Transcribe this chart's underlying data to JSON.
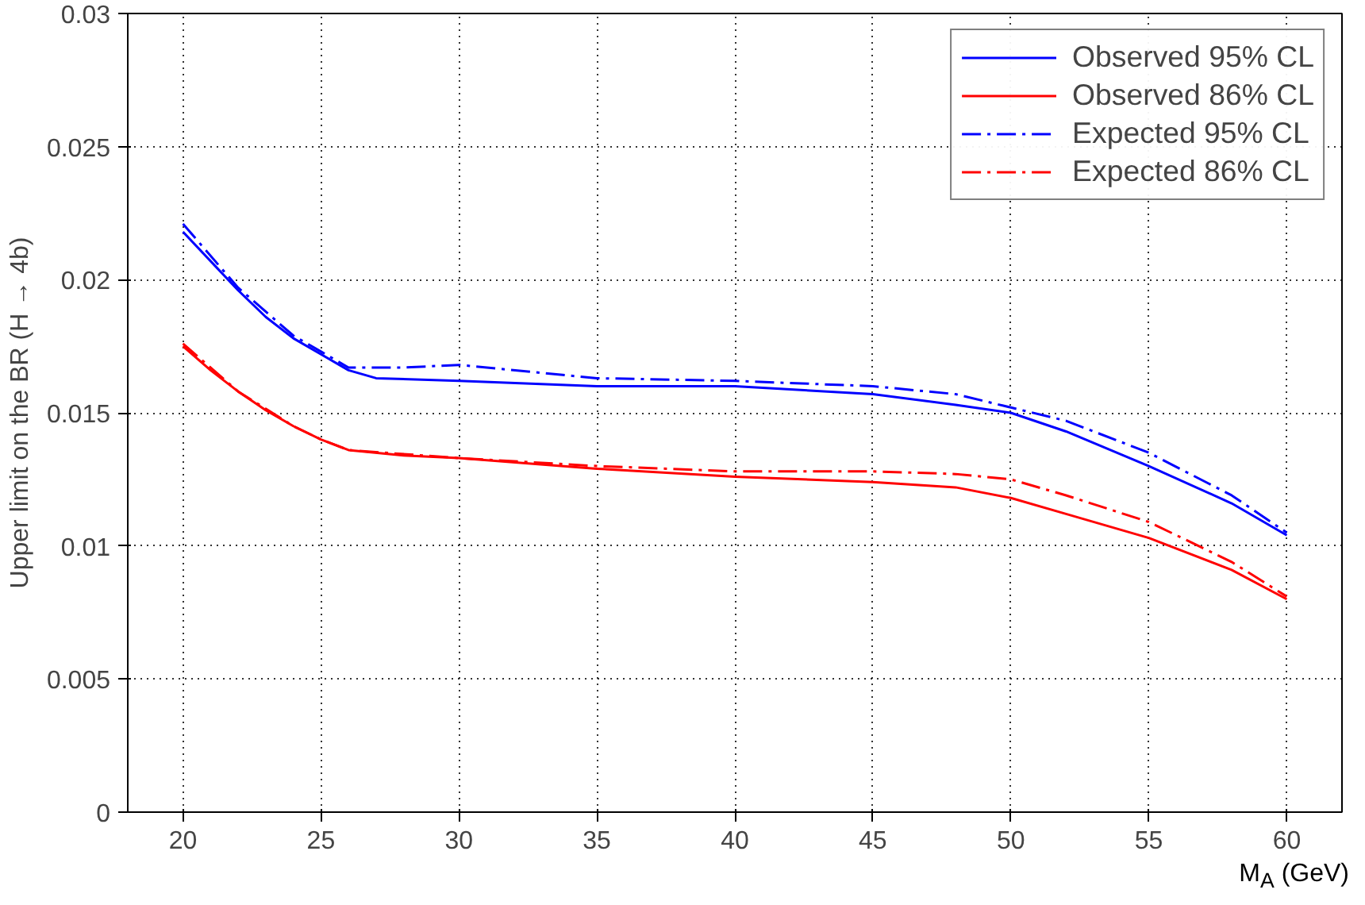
{
  "chart_data": {
    "type": "line",
    "xlabel": "M$_{A}$ (GeV)",
    "ylabel": "Upper limit on the BR (H → 4b)",
    "xlim": [
      18,
      62
    ],
    "ylim": [
      0,
      0.03
    ],
    "xticks": [
      20,
      25,
      30,
      35,
      40,
      45,
      50,
      55,
      60
    ],
    "yticks": [
      0,
      0.005,
      0.01,
      0.015,
      0.02,
      0.025,
      0.03
    ],
    "grid": true,
    "legend": "top right",
    "marker": "none",
    "series": [
      {
        "name": "Observed 95% CL",
        "color": "#0000ff",
        "line_style": "solid",
        "x": [
          20,
          21,
          22,
          23,
          24,
          25,
          26,
          27,
          30,
          35,
          40,
          45,
          48,
          50,
          52,
          55,
          58,
          60
        ],
        "values": [
          0.0218,
          0.0207,
          0.0196,
          0.0186,
          0.0178,
          0.0172,
          0.0166,
          0.0163,
          0.0162,
          0.016,
          0.016,
          0.0157,
          0.0153,
          0.015,
          0.0143,
          0.013,
          0.0116,
          0.0104
        ]
      },
      {
        "name": "Observed 86% CL",
        "color": "#ff0000",
        "line_style": "solid",
        "x": [
          20,
          21,
          22,
          23,
          24,
          25,
          26,
          28,
          30,
          35,
          40,
          45,
          48,
          50,
          52,
          55,
          58,
          60
        ],
        "values": [
          0.0175,
          0.0166,
          0.0158,
          0.0151,
          0.0145,
          0.014,
          0.0136,
          0.0134,
          0.0133,
          0.0129,
          0.0126,
          0.0124,
          0.0122,
          0.0118,
          0.0112,
          0.0103,
          0.0091,
          0.008
        ]
      },
      {
        "name": "Expected 95% CL",
        "color": "#0000ff",
        "line_style": "dashed",
        "x": [
          20,
          22,
          24,
          25,
          26,
          28,
          30,
          35,
          40,
          45,
          48,
          50,
          52,
          55,
          58,
          60
        ],
        "values": [
          0.0221,
          0.0197,
          0.0179,
          0.0173,
          0.0167,
          0.0167,
          0.0168,
          0.0163,
          0.0162,
          0.016,
          0.0157,
          0.0152,
          0.0147,
          0.0135,
          0.0119,
          0.0105
        ]
      },
      {
        "name": "Expected 86% CL",
        "color": "#ff0000",
        "line_style": "dashed",
        "x": [
          20,
          22,
          24,
          25,
          26,
          30,
          35,
          40,
          45,
          48,
          50,
          52,
          55,
          58,
          60
        ],
        "values": [
          0.0176,
          0.0158,
          0.0145,
          0.014,
          0.0136,
          0.0133,
          0.013,
          0.0128,
          0.0128,
          0.0127,
          0.0125,
          0.0119,
          0.0109,
          0.0094,
          0.0081
        ]
      }
    ]
  }
}
